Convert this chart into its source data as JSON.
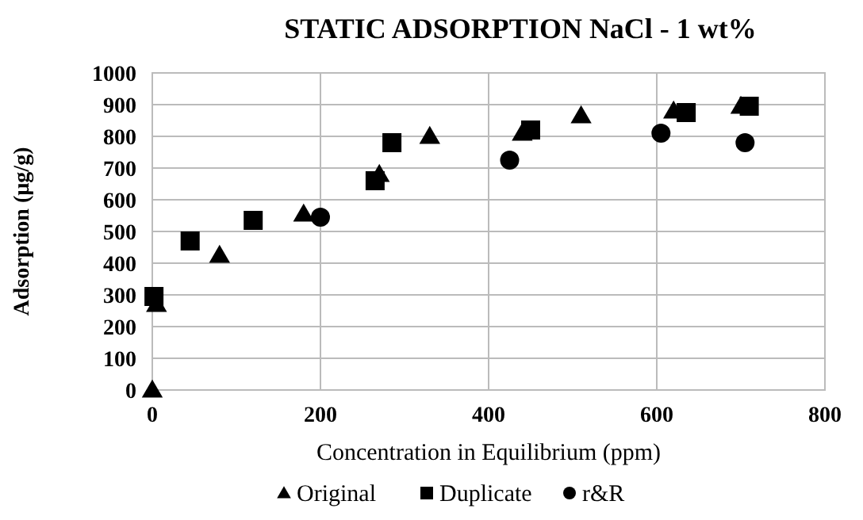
{
  "chart_data": {
    "type": "scatter",
    "title": "STATIC ADSORPTION NaCl - 1 wt%",
    "xlabel": "Concentration in Equilibrium (ppm)",
    "ylabel": "Adsorption (µg/g)",
    "xlim": [
      0,
      800
    ],
    "xticks": [
      0,
      200,
      400,
      600,
      800
    ],
    "ylim": [
      0,
      1000
    ],
    "yticks": [
      0,
      100,
      200,
      300,
      400,
      500,
      600,
      700,
      800,
      900,
      1000
    ],
    "grid": true,
    "legend": "bottom",
    "series": [
      {
        "name": "Original",
        "color": "#000000",
        "marker": "triangle",
        "x": [
          0,
          5,
          80,
          180,
          270,
          330,
          440,
          510,
          620,
          700
        ],
        "values": [
          0,
          270,
          425,
          555,
          680,
          800,
          810,
          865,
          880,
          895
        ]
      },
      {
        "name": "Duplicate",
        "color": "#000000",
        "marker": "square",
        "x": [
          2,
          45,
          120,
          265,
          285,
          450,
          635,
          710
        ],
        "values": [
          295,
          470,
          535,
          660,
          780,
          820,
          875,
          895
        ]
      },
      {
        "name": "r&R",
        "color": "#000000",
        "marker": "circle",
        "x": [
          200,
          425,
          605,
          705
        ],
        "values": [
          545,
          725,
          810,
          780
        ]
      }
    ]
  }
}
